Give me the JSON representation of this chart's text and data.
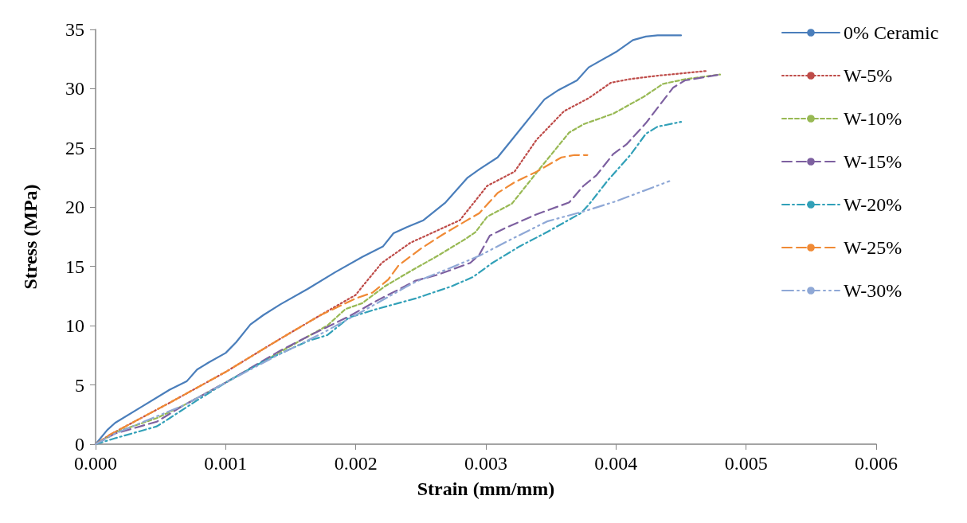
{
  "chart_data": {
    "type": "line",
    "xlabel": "Strain (mm/mm)",
    "ylabel": "Stress (MPa)",
    "xlim": [
      0,
      0.006
    ],
    "xticks": [
      {
        "value": 0,
        "label": "0.000"
      },
      {
        "value": 0.001,
        "label": "0.001"
      },
      {
        "value": 0.002,
        "label": "0.002"
      },
      {
        "value": 0.003,
        "label": "0.003"
      },
      {
        "value": 0.004,
        "label": "0.004"
      },
      {
        "value": 0.005,
        "label": "0.005"
      },
      {
        "value": 0.006,
        "label": "0.006"
      }
    ],
    "ylim": [
      0,
      35
    ],
    "yticks": [
      0,
      5,
      10,
      15,
      20,
      25,
      30,
      35
    ],
    "grid": false,
    "legend": "right",
    "marker": "none",
    "series": [
      {
        "name": "0% Ceramic",
        "color": "#4a7ebb",
        "line_style": "solid",
        "x": [
          0,
          9e-05,
          0.00015,
          0.00036,
          0.00057,
          0.0007,
          0.00078,
          0.00087,
          0.001,
          0.00108,
          0.00119,
          0.00129,
          0.00142,
          0.00163,
          0.00184,
          0.00205,
          0.00221,
          0.00229,
          0.00239,
          0.00252,
          0.00269,
          0.00286,
          0.00295,
          0.00309,
          0.0032,
          0.00345,
          0.00356,
          0.0037,
          0.00379,
          0.004,
          0.00413,
          0.00423,
          0.00432,
          0.0045
        ],
        "values": [
          0,
          1.2,
          1.8,
          3.2,
          4.6,
          5.3,
          6.3,
          6.9,
          7.7,
          8.6,
          10.1,
          10.9,
          11.8,
          13.1,
          14.5,
          15.8,
          16.7,
          17.8,
          18.3,
          18.9,
          20.4,
          22.5,
          23.2,
          24.2,
          25.7,
          29.1,
          29.9,
          30.7,
          31.8,
          33.1,
          34.1,
          34.4,
          34.5,
          34.5
        ]
      },
      {
        "name": "W-5%",
        "color": "#be4b48",
        "line_style": "dotted",
        "x": [
          0,
          0.00011,
          0.00057,
          0.001,
          0.00142,
          0.00173,
          0.002,
          0.00205,
          0.0022,
          0.00242,
          0.0028,
          0.00301,
          0.00322,
          0.00339,
          0.0036,
          0.00379,
          0.00396,
          0.0041,
          0.00432,
          0.0047
        ],
        "values": [
          0,
          0.8,
          3.5,
          6.1,
          8.9,
          10.9,
          12.6,
          13.3,
          15.3,
          17.0,
          18.9,
          21.8,
          23.0,
          25.7,
          28.1,
          29.2,
          30.5,
          30.8,
          31.1,
          31.5
        ]
      },
      {
        "name": "W-10%",
        "color": "#98b954",
        "line_style": "dashed",
        "x": [
          0,
          0.00015,
          0.00047,
          0.00068,
          0.001,
          0.00142,
          0.00178,
          0.00192,
          0.00205,
          0.00222,
          0.00242,
          0.00263,
          0.00284,
          0.00292,
          0.00301,
          0.0032,
          0.00341,
          0.00364,
          0.00375,
          0.00398,
          0.00421,
          0.00436,
          0.00453,
          0.0048
        ],
        "values": [
          0,
          1.0,
          2.2,
          3.3,
          5.2,
          7.8,
          10.0,
          11.4,
          11.9,
          13.3,
          14.6,
          15.9,
          17.3,
          17.9,
          19.2,
          20.3,
          23.2,
          26.3,
          27.0,
          27.9,
          29.3,
          30.4,
          30.8,
          31.2
        ]
      },
      {
        "name": "W-15%",
        "color": "#7d60a0",
        "line_style": "longdash",
        "x": [
          0,
          0.00015,
          0.00047,
          0.00068,
          0.001,
          0.00142,
          0.00167,
          0.00195,
          0.00216,
          0.00232,
          0.00246,
          0.00263,
          0.00288,
          0.00295,
          0.00303,
          0.00316,
          0.00339,
          0.00364,
          0.00375,
          0.00385,
          0.00398,
          0.00408,
          0.00423,
          0.00444,
          0.00453,
          0.0048
        ],
        "values": [
          0,
          0.9,
          1.9,
          3.3,
          5.2,
          7.9,
          9.3,
          10.8,
          12.1,
          13.0,
          13.8,
          14.3,
          15.3,
          16.0,
          17.6,
          18.3,
          19.4,
          20.4,
          21.8,
          22.7,
          24.5,
          25.3,
          27.1,
          30.1,
          30.7,
          31.2
        ]
      },
      {
        "name": "W-20%",
        "color": "#31a0b8",
        "line_style": "dashdot",
        "x": [
          0,
          0.00015,
          0.00047,
          0.00057,
          0.00078,
          0.001,
          0.00131,
          0.00163,
          0.00178,
          0.00195,
          0.00216,
          0.00246,
          0.00273,
          0.0029,
          0.00305,
          0.00326,
          0.00347,
          0.00373,
          0.00379,
          0.00394,
          0.00411,
          0.00423,
          0.00432,
          0.0045
        ],
        "values": [
          0,
          0.5,
          1.5,
          2.2,
          3.7,
          5.2,
          7.1,
          8.7,
          9.2,
          10.7,
          11.4,
          12.3,
          13.3,
          14.1,
          15.3,
          16.7,
          17.9,
          19.5,
          20.2,
          22.3,
          24.4,
          26.2,
          26.8,
          27.2
        ]
      },
      {
        "name": "W-25%",
        "color": "#f08a35",
        "line_style": "longdash",
        "x": [
          0,
          0.00011,
          0.00057,
          0.001,
          0.00142,
          0.00173,
          0.002,
          0.00213,
          0.00225,
          0.00233,
          0.0025,
          0.00267,
          0.00284,
          0.00295,
          0.00309,
          0.00322,
          0.00339,
          0.00358,
          0.00368,
          0.00378
        ],
        "values": [
          0,
          0.8,
          3.5,
          6.1,
          8.9,
          10.9,
          12.3,
          12.8,
          13.9,
          15.1,
          16.5,
          17.7,
          18.8,
          19.5,
          21.2,
          22.1,
          23.0,
          24.2,
          24.4,
          24.4
        ]
      },
      {
        "name": "W-30%",
        "color": "#8fa8d6",
        "line_style": "longdashdotdot",
        "x": [
          0,
          0.00015,
          0.00068,
          0.001,
          0.00138,
          0.00173,
          0.00205,
          0.00239,
          0.00246,
          0.00271,
          0.00295,
          0.00316,
          0.00347,
          0.00377,
          0.004,
          0.00441
        ],
        "values": [
          0,
          0.9,
          3.3,
          5.2,
          7.4,
          9.3,
          11.2,
          13.3,
          13.7,
          14.8,
          15.9,
          17.1,
          18.8,
          19.7,
          20.5,
          22.2
        ]
      }
    ]
  }
}
